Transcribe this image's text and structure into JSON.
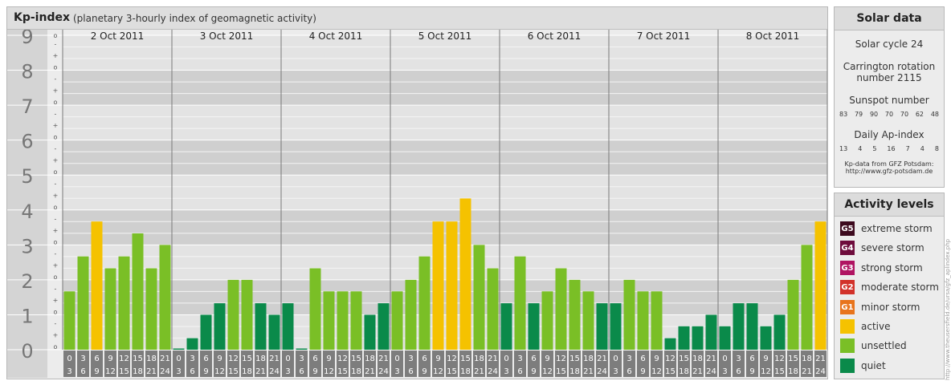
{
  "header": {
    "title": "Kp-index",
    "subtitle": "(planetary 3-hourly index of geomagnetic activity)"
  },
  "chart_data": {
    "type": "bar",
    "ylabel": "",
    "ylim": [
      0,
      9
    ],
    "y_ticks": [
      "0",
      "1",
      "2",
      "3",
      "4",
      "5",
      "6",
      "7",
      "8",
      "9"
    ],
    "minor_tick_labels": [
      "o",
      "+",
      "-"
    ],
    "days": [
      "2 Oct 2011",
      "3 Oct 2011",
      "4 Oct 2011",
      "5 Oct 2011",
      "6 Oct 2011",
      "7 Oct 2011",
      "8 Oct 2011"
    ],
    "interval_top_labels": [
      "0",
      "3",
      "6",
      "9",
      "12",
      "15",
      "18",
      "21"
    ],
    "interval_bottom_labels": [
      "3",
      "6",
      "9",
      "12",
      "15",
      "18",
      "21",
      "24"
    ],
    "values": [
      1.67,
      2.67,
      3.67,
      2.33,
      2.67,
      3.33,
      2.33,
      3.0,
      0.0,
      0.33,
      1.0,
      1.33,
      2.0,
      2.0,
      1.33,
      1.0,
      1.33,
      0.0,
      2.33,
      1.67,
      1.67,
      1.67,
      1.0,
      1.33,
      1.67,
      2.0,
      2.67,
      3.67,
      3.67,
      4.33,
      3.0,
      2.33,
      1.33,
      2.67,
      1.33,
      1.67,
      2.33,
      2.0,
      1.67,
      1.33,
      1.33,
      2.0,
      1.67,
      1.67,
      0.33,
      0.67,
      0.67,
      1.0,
      0.67,
      1.33,
      1.33,
      0.67,
      1.0,
      2.0,
      3.0,
      3.67
    ],
    "grid": true,
    "colors": {
      "quiet": "#0a8a4a",
      "unsettled": "#7abf26",
      "active": "#f5c200"
    }
  },
  "solar": {
    "title": "Solar data",
    "cycle": "Solar cycle 24",
    "carrington_line1": "Carrington rotation",
    "carrington_line2": "number 2115",
    "sunspot_label": "Sunspot number",
    "sunspots": [
      "83",
      "79",
      "90",
      "70",
      "70",
      "62",
      "48"
    ],
    "ap_label": "Daily Ap-index",
    "ap": [
      "13",
      "4",
      "5",
      "16",
      "7",
      "4",
      "8"
    ],
    "credit_line1": "Kp-data from GFZ Potsdam:",
    "credit_line2": "http://www.gfz-potsdam.de"
  },
  "activity": {
    "title": "Activity levels",
    "levels": [
      {
        "code": "G5",
        "label": "extreme storm",
        "color": "#3d0a1e"
      },
      {
        "code": "G4",
        "label": "severe storm",
        "color": "#6e0c3c"
      },
      {
        "code": "G3",
        "label": "strong storm",
        "color": "#b01462"
      },
      {
        "code": "G2",
        "label": "moderate storm",
        "color": "#d2322a"
      },
      {
        "code": "G1",
        "label": "minor storm",
        "color": "#e8741c"
      },
      {
        "code": "",
        "label": "active",
        "color": "#f5c200"
      },
      {
        "code": "",
        "label": "unsettled",
        "color": "#7abf26"
      },
      {
        "code": "",
        "label": "quiet",
        "color": "#0a8a4a"
      }
    ]
  },
  "credit": "http://www.theusersfield.de/ursa/gfz_aplindex.php"
}
